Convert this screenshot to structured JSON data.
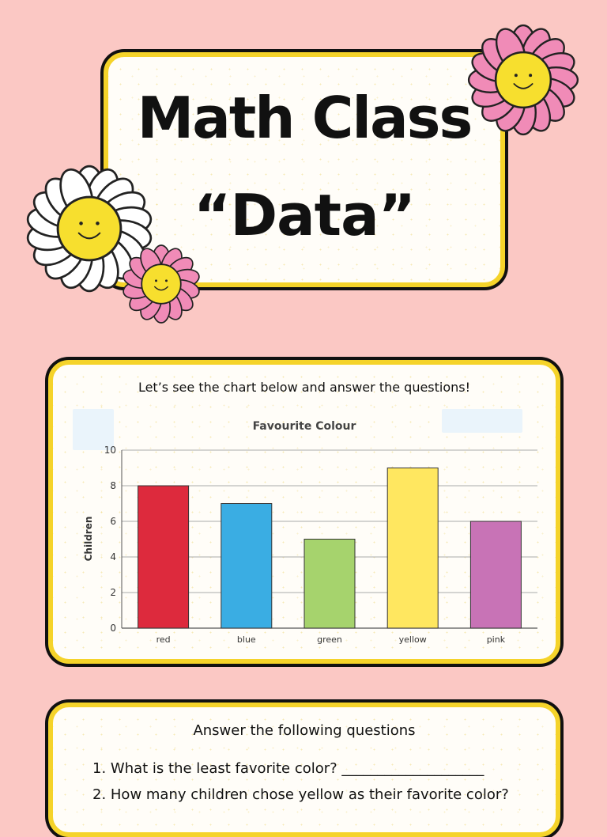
{
  "header": {
    "title": "Math Class",
    "subtitle": "“Data”"
  },
  "chart_card": {
    "intro": "Let’s see the chart below and answer the questions!"
  },
  "chart_data": {
    "type": "bar",
    "title": "Favourite Colour",
    "xlabel": "",
    "ylabel": "Children",
    "categories": [
      "red",
      "blue",
      "green",
      "yellow",
      "pink"
    ],
    "values": [
      8,
      7,
      5,
      9,
      6
    ],
    "ylim": [
      0,
      10
    ],
    "yticks": [
      0,
      2,
      4,
      6,
      8,
      10
    ],
    "colors": [
      "#dd2a3d",
      "#3aade3",
      "#a6d36d",
      "#ffe760",
      "#c873b6"
    ],
    "grid": true
  },
  "questions": {
    "title": "Answer the following questions",
    "items": [
      "1. What is the least favorite color? ____________________",
      "2. How many children chose yellow as their favorite color?"
    ]
  },
  "decor": {
    "flower_colors": {
      "pink_petals": "#f08bb7",
      "white_petals": "#ffffff",
      "center": "#f7df2e",
      "outline": "#222222"
    }
  }
}
